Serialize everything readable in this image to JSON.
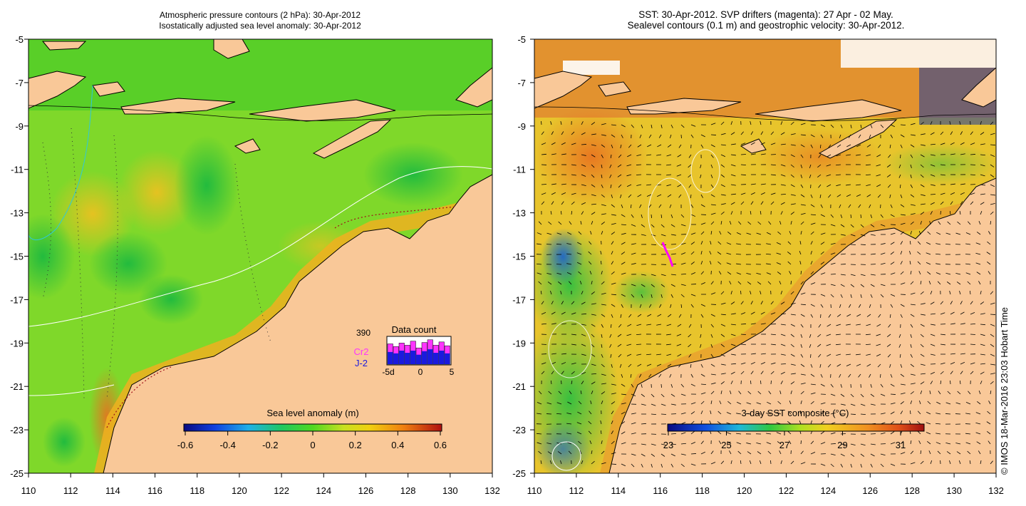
{
  "left_panel": {
    "title_line1": "Atmospheric pressure contours (2 hPa): 30-Apr-2012",
    "title_line2": "Isostatically adjusted sea level anomaly: 30-Apr-2012",
    "colorbar_label": "Sea level anomaly (m)",
    "colorbar_ticks": [
      "-0.6",
      "-0.4",
      "-0.2",
      "0",
      "0.2",
      "0.4",
      "0.6"
    ],
    "data_count": {
      "title": "Data count",
      "total": "390",
      "mission_1": "Cr2",
      "mission_2": "J-2",
      "axis_ticks": [
        "-5d",
        "0",
        "5"
      ],
      "bars_total": [
        0.75,
        0.65,
        0.78,
        0.7,
        0.85,
        0.6,
        0.8,
        0.9,
        0.7,
        0.82,
        0.68
      ],
      "bars_mission_2": [
        0.45,
        0.4,
        0.5,
        0.42,
        0.5,
        0.35,
        0.48,
        0.55,
        0.42,
        0.5,
        0.4
      ]
    }
  },
  "right_panel": {
    "title_line1": "SST: 30-Apr-2012. SVP drifters (magenta): 27 Apr - 02 May.",
    "title_line2": "Sealevel contours (0.1 m) and geostrophic velocity: 30-Apr-2012.",
    "colorbar_label": "3-day SST composite (°C)",
    "colorbar_ticks": [
      "23",
      "25",
      "27",
      "29",
      "31"
    ]
  },
  "y_axis_ticks": [
    "-5",
    "-7",
    "-9",
    "-11",
    "-13",
    "-15",
    "-17",
    "-19",
    "-21",
    "-23",
    "-25"
  ],
  "x_axis_ticks": [
    "110",
    "112",
    "114",
    "116",
    "118",
    "120",
    "122",
    "124",
    "126",
    "128",
    "130",
    "132"
  ],
  "credit": "© IMOS 18-Mar-2016 23:03 Hobart Time",
  "colors": {
    "land": "#f9c898",
    "sla_low": "#22cc22",
    "sla_mid": "#9ee01a",
    "sla_high": "#e8c800",
    "sst_warm": "#e89030",
    "sst_mid": "#e0c030",
    "sst_cool": "#40c840",
    "drifter": "#ff00ff",
    "mission_1": "#ff33ff",
    "mission_2": "#1a1add"
  }
}
